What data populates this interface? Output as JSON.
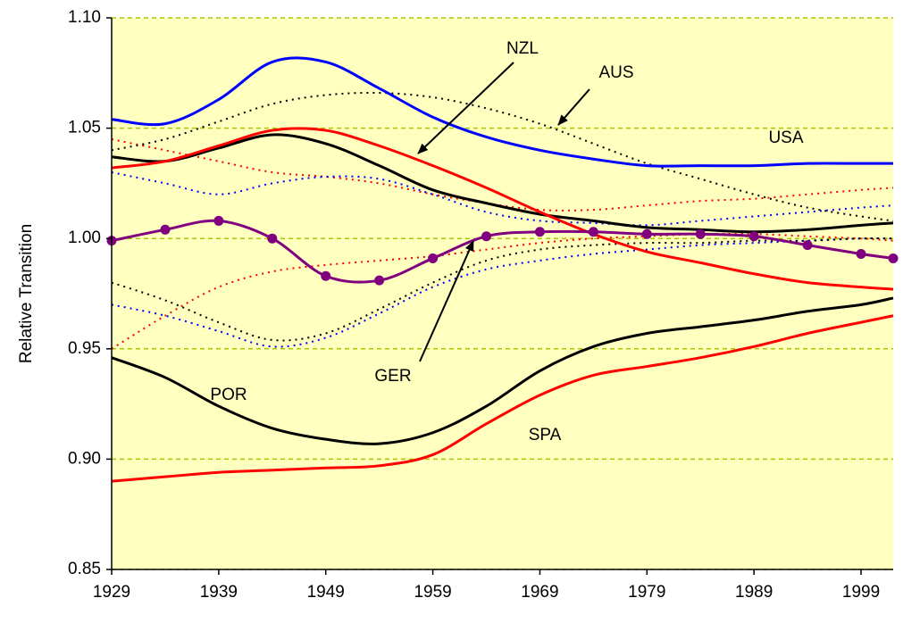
{
  "chart_data": {
    "type": "line",
    "y_label": "Relative Transition",
    "x": [
      1929,
      1934,
      1939,
      1944,
      1949,
      1954,
      1959,
      1964,
      1969,
      1974,
      1979,
      1984,
      1989,
      1994,
      1999,
      2002
    ],
    "xlim": [
      1929,
      2002
    ],
    "xticks": [
      1929,
      1939,
      1949,
      1959,
      1969,
      1979,
      1989,
      1999
    ],
    "ylim": [
      0.85,
      1.1
    ],
    "yticks": [
      0.85,
      {
        "value": 0.9,
        "label": "0.90"
      },
      0.95,
      {
        "value": 1.0,
        "label": "1.00"
      },
      1.05,
      {
        "value": 1.1,
        "label": "1.10"
      }
    ],
    "grid": true,
    "grid_color": "#a8c800",
    "plot_background": "#ffffc0",
    "series": [
      {
        "color": "#ff0000",
        "dash": "dotted",
        "values": [
          1.045,
          1.04,
          1.035,
          1.03,
          1.028,
          1.025,
          1.02,
          1.016,
          1.013,
          1.013,
          1.015,
          1.017,
          1.018,
          1.02,
          1.022,
          1.023
        ]
      },
      {
        "color": "#ff0000",
        "dash": "dotted",
        "values": [
          0.95,
          0.965,
          0.978,
          0.985,
          0.988,
          0.99,
          0.992,
          0.995,
          0.998,
          1.0,
          1.001,
          1.002,
          1.002,
          1.001,
          1.0,
          0.999
        ]
      },
      {
        "color": "#0000ff",
        "dash": "dotted",
        "values": [
          1.03,
          1.025,
          1.02,
          1.025,
          1.028,
          1.027,
          1.02,
          1.012,
          1.008,
          1.007,
          1.006,
          1.008,
          1.01,
          1.012,
          1.014,
          1.015
        ]
      },
      {
        "color": "#0000ff",
        "dash": "dotted",
        "values": [
          0.97,
          0.965,
          0.958,
          0.951,
          0.955,
          0.966,
          0.978,
          0.986,
          0.99,
          0.993,
          0.995,
          0.997,
          0.998,
          0.999,
          1.0,
          1.0
        ]
      },
      {
        "color": "#000000",
        "dash": "dotted",
        "values": [
          0.98,
          0.972,
          0.962,
          0.954,
          0.957,
          0.968,
          0.98,
          0.99,
          0.995,
          0.997,
          0.998,
          0.998,
          0.999,
          0.999,
          1.0,
          1.0
        ]
      },
      {
        "name": "AUS",
        "color": "#000000",
        "dash": "dotted",
        "values": [
          1.04,
          1.045,
          1.053,
          1.061,
          1.065,
          1.066,
          1.064,
          1.059,
          1.052,
          1.043,
          1.034,
          1.027,
          1.02,
          1.014,
          1.01,
          1.008
        ]
      },
      {
        "name": "USA",
        "color": "#0000ff",
        "dash": "solid",
        "values": [
          1.054,
          1.052,
          1.063,
          1.08,
          1.08,
          1.068,
          1.055,
          1.046,
          1.04,
          1.036,
          1.033,
          1.033,
          1.033,
          1.034,
          1.034,
          1.034
        ]
      },
      {
        "color": "#000000",
        "dash": "solid",
        "values": [
          1.037,
          1.035,
          1.041,
          1.047,
          1.043,
          1.033,
          1.022,
          1.016,
          1.011,
          1.008,
          1.005,
          1.004,
          1.003,
          1.004,
          1.006,
          1.007
        ]
      },
      {
        "name": "NZL",
        "color": "#ff0000",
        "dash": "solid",
        "values": [
          1.032,
          1.035,
          1.042,
          1.049,
          1.049,
          1.042,
          1.033,
          1.023,
          1.012,
          1.002,
          0.994,
          0.989,
          0.984,
          0.98,
          0.978,
          0.977
        ]
      },
      {
        "name": "GER",
        "color": "#800080",
        "dash": "markers",
        "values": [
          0.999,
          1.004,
          1.008,
          1.0,
          0.983,
          0.981,
          0.991,
          1.001,
          1.003,
          1.003,
          1.002,
          1.002,
          1.001,
          0.997,
          0.993,
          0.991
        ]
      },
      {
        "name": "POR",
        "color": "#000000",
        "dash": "solid",
        "values": [
          0.946,
          0.937,
          0.924,
          0.914,
          0.909,
          0.907,
          0.912,
          0.924,
          0.94,
          0.951,
          0.957,
          0.96,
          0.963,
          0.967,
          0.97,
          0.973
        ]
      },
      {
        "name": "SPA",
        "color": "#ff0000",
        "dash": "solid",
        "values": [
          0.89,
          0.892,
          0.894,
          0.895,
          0.896,
          0.897,
          0.902,
          0.916,
          0.929,
          0.938,
          0.942,
          0.946,
          0.951,
          0.957,
          0.962,
          0.965
        ]
      }
    ],
    "annotations": [
      "NZL",
      "AUS",
      "USA",
      "GER",
      "POR",
      "SPA"
    ]
  }
}
